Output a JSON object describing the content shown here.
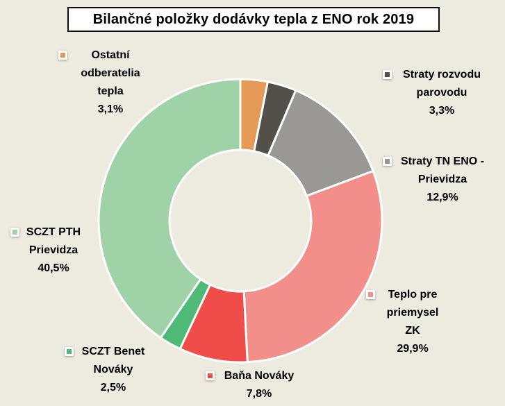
{
  "title": "Bilančné položky dodávky tepla z ENO rok 2019",
  "chart_data": {
    "type": "pie",
    "subtype": "donut",
    "title": "Bilančné položky dodávky tepla z ENO rok 2019",
    "categories": [
      "Ostatní odberatelia tepla",
      "Straty rozvodu parovodu",
      "Straty TN ENO - Prievidza",
      "Teplo pre priemysel ZK",
      "Baňa Nováky",
      "SCZT Benet Nováky",
      "SCZT PTH Prievidza"
    ],
    "values": [
      3.1,
      3.3,
      12.9,
      29.9,
      7.8,
      2.5,
      40.5
    ],
    "display_values": [
      "3,1%",
      "3,3%",
      "12,9%",
      "29,9%",
      "7,8%",
      "2,5%",
      "40,5%"
    ],
    "colors": [
      "#E69A58",
      "#53504A",
      "#9A9894",
      "#F38F8B",
      "#F04C4A",
      "#4FBA78",
      "#9FD3A7"
    ],
    "start_angle_deg": 0,
    "direction": "clockwise",
    "hole_ratio": 0.5,
    "slice_border_color": "#FFFFFF",
    "background_color": "#EDEAE0",
    "legend_position": "outside-callouts",
    "grid": false
  },
  "labels": [
    {
      "text": "Ostatní\nodberatelia\ntepla\n3,1%"
    },
    {
      "text": "Straty rozvodu\nparovodu\n3,3%"
    },
    {
      "text": "Straty TN ENO -\nPrievidza\n12,9%"
    },
    {
      "text": "Teplo pre\npriemysel ZK\n29,9%"
    },
    {
      "text": "Baňa Nováky\n7,8%"
    },
    {
      "text": "SCZT Benet\nNováky\n2,5%"
    },
    {
      "text": "SCZT PTH\nPrievidza\n40,5%"
    }
  ]
}
